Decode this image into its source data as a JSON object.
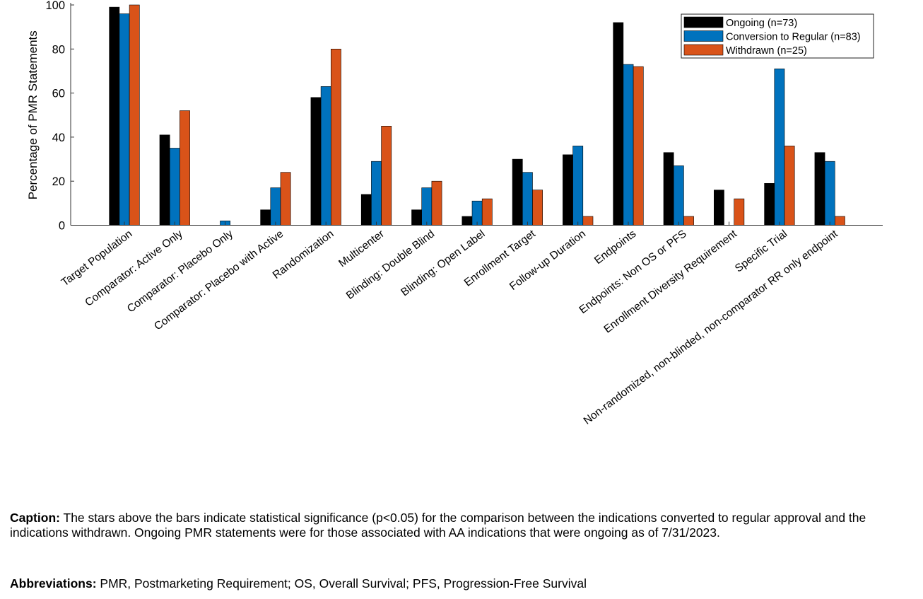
{
  "chart_data": {
    "type": "bar",
    "title": "",
    "xlabel": "",
    "ylabel": "Percentage of PMR Statements",
    "ylim": [
      0,
      100
    ],
    "yticks": [
      0,
      20,
      40,
      60,
      80,
      100
    ],
    "grid": false,
    "legend_position": "top-right",
    "categories": [
      "Target Population",
      "Comparator: Active Only",
      "Comparator: Placebo Only",
      "Comparator: Placebo with Active",
      "Randomization",
      "Multicenter",
      "Blinding: Double Blind",
      "Blinding: Open Label",
      "Enrollment Target",
      "Follow-up Duration",
      "Endpoints",
      "Endpoints: Non OS or PFS",
      "Enrollment Diversity Requirement",
      "Specific Trial",
      "Non-randomized, non-blinded, non-comparator RR only endpoint"
    ],
    "series": [
      {
        "name": "Ongoing (n=73)",
        "color": "#000000",
        "values": [
          99,
          41,
          0,
          7,
          58,
          14,
          7,
          4,
          30,
          32,
          92,
          33,
          16,
          19,
          33
        ]
      },
      {
        "name": "Conversion to Regular (n=83)",
        "color": "#0072BD",
        "values": [
          96,
          35,
          2,
          17,
          63,
          29,
          17,
          11,
          24,
          36,
          73,
          27,
          0,
          71,
          29
        ]
      },
      {
        "name": "Withdrawn (n=25)",
        "color": "#D95319",
        "values": [
          100,
          52,
          0,
          24,
          80,
          45,
          20,
          12,
          16,
          4,
          72,
          4,
          12,
          36,
          4
        ]
      }
    ]
  },
  "caption": {
    "label": "Caption:",
    "text": " The stars above the bars indicate statistical significance (p<0.05) for the comparison between the indications converted to regular approval and the indications withdrawn. Ongoing PMR statements were for those associated with AA indications that were ongoing as of 7/31/2023."
  },
  "abbreviations": {
    "label": "Abbreviations:",
    "text": " PMR, Postmarketing Requirement; OS, Overall Survival; PFS, Progression-Free Survival"
  }
}
